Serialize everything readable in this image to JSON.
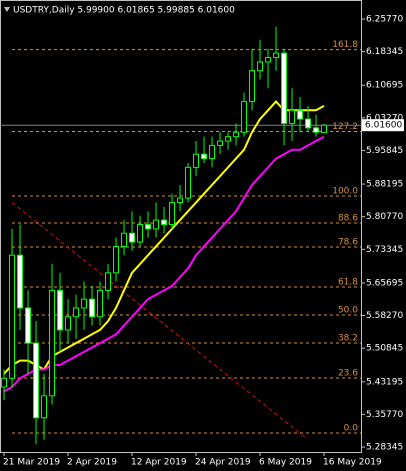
{
  "chart_data": {
    "type": "candlestick",
    "title": "USDTRY,Daily  5.99900 6.01865 5.99885 6.01600",
    "background": "#000000",
    "up_color": "#00ff00",
    "down_color": "#ffffff",
    "categories": [
      "21 Mar 2019",
      null,
      null,
      null,
      null,
      null,
      null,
      null,
      "2 Apr 2019",
      null,
      null,
      null,
      null,
      null,
      null,
      null,
      "12 Apr 2019",
      null,
      null,
      null,
      null,
      null,
      null,
      null,
      "24 Apr 2019",
      null,
      null,
      null,
      null,
      null,
      null,
      null,
      "6 May 2019",
      null,
      null,
      null,
      null,
      null,
      null,
      null,
      "16 May 2019"
    ],
    "open": [
      5.42,
      5.44,
      5.72,
      5.6,
      5.52,
      5.35,
      5.4,
      5.64,
      5.55,
      5.58,
      5.6,
      5.62,
      5.58,
      5.64,
      5.68,
      5.74,
      5.77,
      5.75,
      5.79,
      5.78,
      5.8,
      5.79,
      5.84,
      5.85,
      5.92,
      5.95,
      5.94,
      5.97,
      5.98,
      5.99,
      6.0,
      6.07,
      6.14,
      6.16,
      6.17,
      6.18,
      6.02,
      6.05,
      6.03,
      6.01,
      5.999
    ],
    "high": [
      5.46,
      5.78,
      5.79,
      5.64,
      5.57,
      5.45,
      5.7,
      5.68,
      5.62,
      5.63,
      5.66,
      5.65,
      5.66,
      5.7,
      5.76,
      5.8,
      5.82,
      5.81,
      5.82,
      5.84,
      5.83,
      5.86,
      5.88,
      5.93,
      5.98,
      5.99,
      5.99,
      6.0,
      6.0,
      6.02,
      6.09,
      6.19,
      6.21,
      6.19,
      6.24,
      6.19,
      6.1,
      6.08,
      6.06,
      6.04,
      6.01865
    ],
    "low": [
      5.39,
      5.42,
      5.55,
      5.45,
      5.29,
      5.3,
      5.38,
      5.5,
      5.52,
      5.53,
      5.55,
      5.56,
      5.56,
      5.62,
      5.66,
      5.72,
      5.73,
      5.74,
      5.76,
      5.76,
      5.77,
      5.78,
      5.82,
      5.84,
      5.9,
      5.93,
      5.92,
      5.95,
      5.96,
      5.97,
      5.99,
      6.05,
      6.12,
      6.1,
      6.14,
      5.97,
      5.98,
      6.0,
      6.0,
      5.99,
      5.99885
    ],
    "close": [
      5.44,
      5.72,
      5.6,
      5.52,
      5.35,
      5.4,
      5.64,
      5.55,
      5.58,
      5.6,
      5.62,
      5.58,
      5.64,
      5.68,
      5.74,
      5.77,
      5.75,
      5.79,
      5.78,
      5.8,
      5.79,
      5.84,
      5.85,
      5.92,
      5.95,
      5.94,
      5.97,
      5.98,
      5.99,
      6.0,
      6.07,
      6.14,
      6.16,
      6.17,
      6.18,
      6.02,
      6.05,
      6.03,
      6.01,
      6.0,
      6.016
    ],
    "series": [
      {
        "color": "#ffff00",
        "values": [
          5.45,
          5.47,
          5.48,
          5.48,
          5.47,
          5.46,
          5.49,
          5.5,
          5.51,
          5.52,
          5.53,
          5.54,
          5.55,
          5.57,
          5.6,
          5.64,
          5.68,
          5.7,
          5.72,
          5.74,
          5.76,
          5.78,
          5.8,
          5.82,
          5.84,
          5.86,
          5.88,
          5.9,
          5.92,
          5.94,
          5.96,
          6.0,
          6.03,
          6.05,
          6.07,
          6.05,
          6.05,
          6.05,
          6.05,
          6.05,
          6.06
        ]
      },
      {
        "color": "#ff00ff",
        "values": [
          5.41,
          5.42,
          5.44,
          5.45,
          5.46,
          5.46,
          5.47,
          5.47,
          5.48,
          5.49,
          5.5,
          5.51,
          5.52,
          5.53,
          5.54,
          5.56,
          5.58,
          5.6,
          5.62,
          5.63,
          5.64,
          5.65,
          5.67,
          5.69,
          5.72,
          5.74,
          5.76,
          5.78,
          5.8,
          5.82,
          5.85,
          5.88,
          5.9,
          5.92,
          5.94,
          5.95,
          5.96,
          5.96,
          5.97,
          5.98,
          5.99
        ]
      }
    ],
    "ylim": [
      5.2721,
      6.301
    ],
    "yticks": [
      {
        "value": 6.2577,
        "label": "6.25770"
      },
      {
        "value": 6.18345,
        "label": "6.18345"
      },
      {
        "value": 6.10695,
        "label": "6.10695"
      },
      {
        "value": 6.0327,
        "label": "6.03270"
      },
      {
        "value": 5.95845,
        "label": "5.95845"
      },
      {
        "value": 5.88195,
        "label": "5.88195"
      },
      {
        "value": 5.8077,
        "label": "5.80770"
      },
      {
        "value": 5.73345,
        "label": "5.73345"
      },
      {
        "value": 5.65695,
        "label": "5.65695"
      },
      {
        "value": 5.5827,
        "label": "5.58270"
      },
      {
        "value": 5.50845,
        "label": "5.50845"
      },
      {
        "value": 5.43195,
        "label": "5.43195"
      },
      {
        "value": 5.3577,
        "label": "5.35770"
      },
      {
        "value": 5.28345,
        "label": "5.28345"
      }
    ],
    "last_price": {
      "value": 6.016,
      "label": "6.01600"
    },
    "fibonacci": {
      "color": "#d9913e",
      "levels": [
        {
          "label": "161.8",
          "price": 6.188
        },
        {
          "label": "127.2",
          "price": 6.0016
        },
        {
          "label": "100.0",
          "price": 5.8548
        },
        {
          "label": "88.6",
          "price": 5.7933
        },
        {
          "label": "78.6",
          "price": 5.7387
        },
        {
          "label": "61.8",
          "price": 5.6477
        },
        {
          "label": "50.0",
          "price": 5.5839
        },
        {
          "label": "38.2",
          "price": 5.5202
        },
        {
          "label": "23.6",
          "price": 5.4405
        },
        {
          "label": "0.0",
          "price": 5.3153
        }
      ]
    },
    "trendline": {
      "color": "#d01010",
      "x": [
        1,
        37.6
      ],
      "y": [
        5.84,
        5.306
      ]
    }
  }
}
